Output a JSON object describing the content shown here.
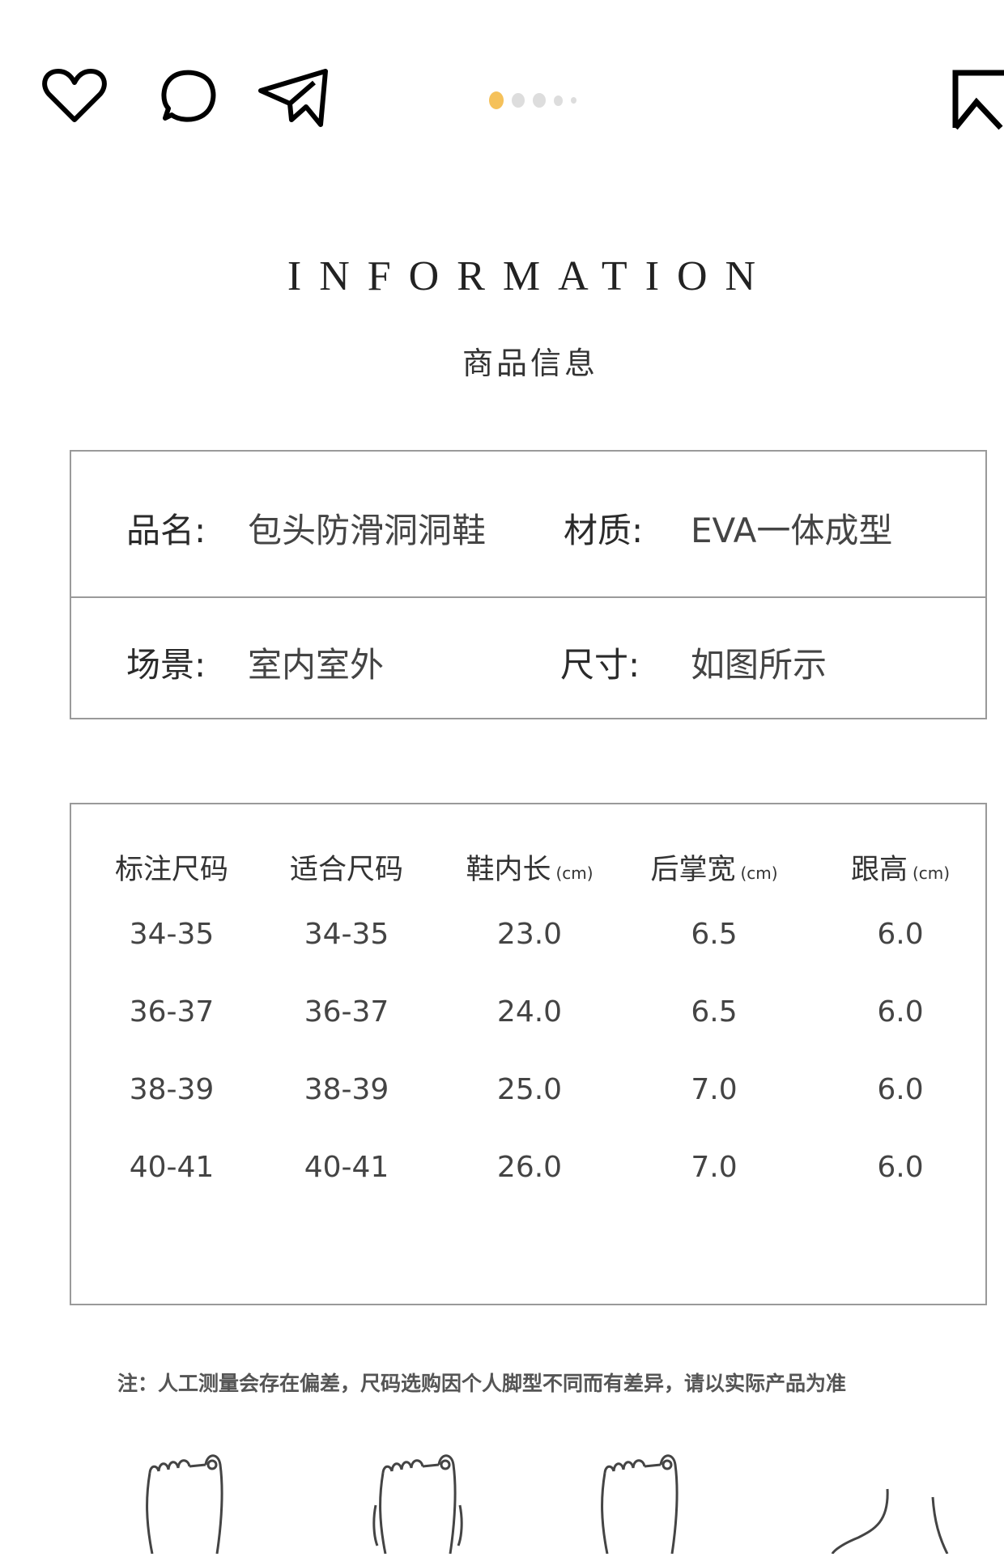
{
  "toolbar": {
    "icons": [
      "heart-icon",
      "comment-icon",
      "send-icon",
      "bookmark-icon"
    ],
    "carousel": {
      "count": 5,
      "active_index": 0,
      "active_color": "#F5C15A",
      "inactive_color": "#DDDDDD"
    }
  },
  "header": {
    "title": "INFORMATION",
    "subtitle": "商品信息"
  },
  "product_info": {
    "rows": [
      [
        {
          "label": "品名:",
          "value": "包头防滑洞洞鞋"
        },
        {
          "label": "材质:",
          "value": "EVA一体成型"
        }
      ],
      [
        {
          "label": "场景:",
          "value": "室内室外"
        },
        {
          "label": "尺寸:",
          "value": "如图所示"
        }
      ]
    ]
  },
  "size_table": {
    "headers": [
      {
        "label": "标注尺码",
        "unit": ""
      },
      {
        "label": "适合尺码",
        "unit": ""
      },
      {
        "label": "鞋内长",
        "unit": "(cm)"
      },
      {
        "label": "后掌宽",
        "unit": "(cm)"
      },
      {
        "label": "跟高",
        "unit": "(cm)"
      }
    ],
    "rows": [
      [
        "34-35",
        "34-35",
        "23.0",
        "6.5",
        "6.0"
      ],
      [
        "36-37",
        "36-37",
        "24.0",
        "6.5",
        "6.0"
      ],
      [
        "38-39",
        "38-39",
        "25.0",
        "7.0",
        "6.0"
      ],
      [
        "40-41",
        "40-41",
        "26.0",
        "7.0",
        "6.0"
      ]
    ]
  },
  "note": "注：人工测量会存在偏差，尺码选购因个人脚型不同而有差异，请以实际产品为准"
}
